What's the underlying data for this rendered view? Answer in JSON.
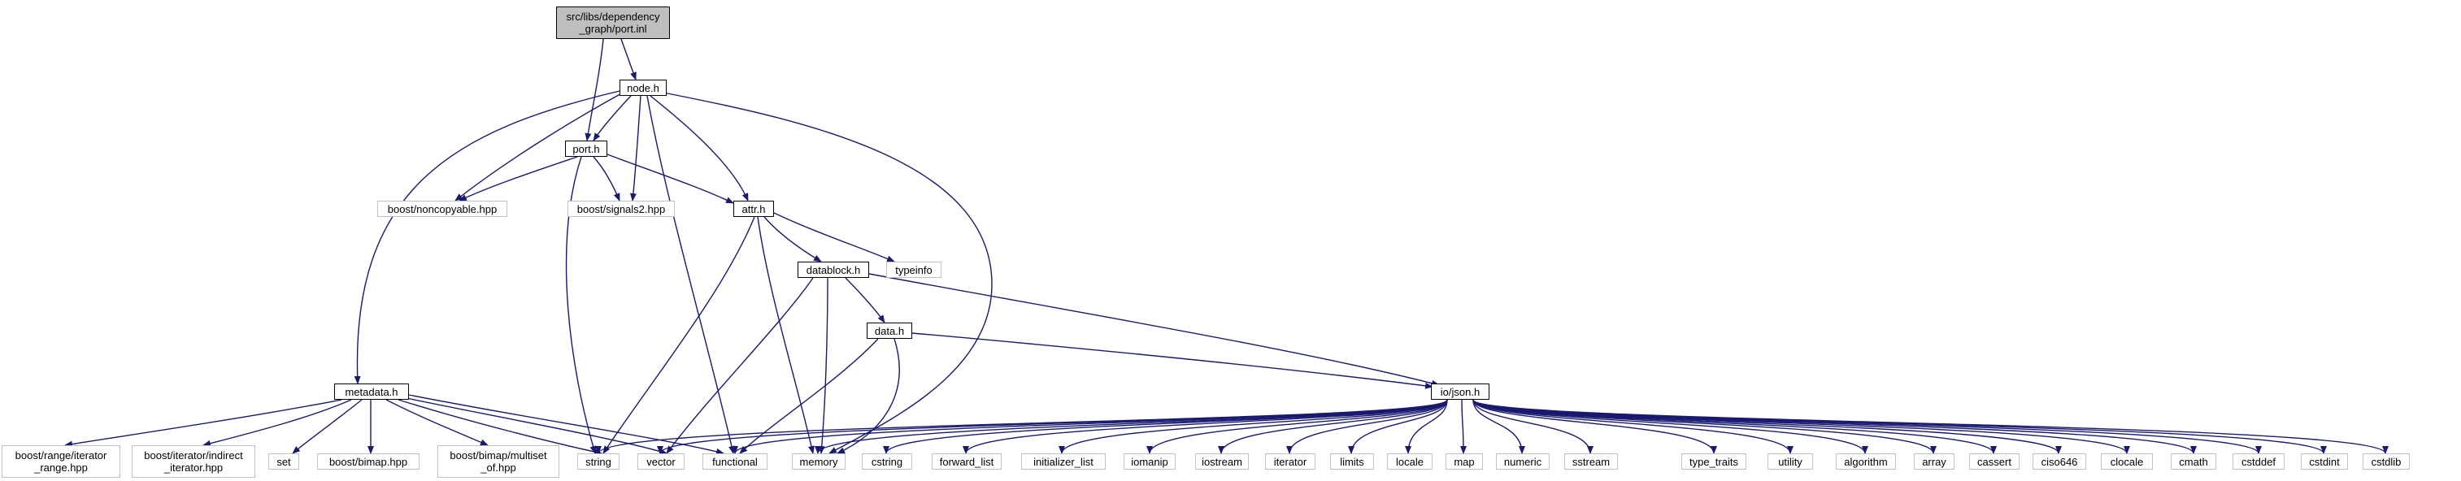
{
  "root": {
    "label_line1": "src/libs/dependency",
    "label_line2": "_graph/port.inl"
  },
  "nodes": {
    "node_h": "node.h",
    "port_h": "port.h",
    "attr_h": "attr.h",
    "datablock_h": "datablock.h",
    "data_h": "data.h",
    "metadata_h": "metadata.h",
    "io_json_h": "io/json.h",
    "boost_noncopyable": "boost/noncopyable.hpp",
    "boost_signals2": "boost/signals2.hpp",
    "typeinfo": "typeinfo",
    "boost_range_line1": "boost/range/iterator",
    "boost_range_line2": "_range.hpp",
    "boost_iter_line1": "boost/iterator/indirect",
    "boost_iter_line2": "_iterator.hpp",
    "set": "set",
    "boost_bimap": "boost/bimap.hpp",
    "boost_multiset_line1": "boost/bimap/multiset",
    "boost_multiset_line2": "_of.hpp",
    "string": "string",
    "vector": "vector",
    "functional": "functional",
    "memory": "memory",
    "cstring": "cstring",
    "forward_list": "forward_list",
    "initializer_list": "initializer_list",
    "iomanip": "iomanip",
    "iostream": "iostream",
    "iterator": "iterator",
    "limits": "limits",
    "locale": "locale",
    "map": "map",
    "numeric": "numeric",
    "sstream": "sstream",
    "type_traits": "type_traits",
    "utility": "utility",
    "algorithm": "algorithm",
    "array": "array",
    "cassert": "cassert",
    "ciso646": "ciso646",
    "clocale": "clocale",
    "cmath": "cmath",
    "cstddef": "cstddef",
    "cstdint": "cstdint",
    "cstdlib": "cstdlib"
  },
  "colors": {
    "edge": "#191970",
    "root_fill": "#bfbfbf",
    "ext_border": "#c0c0c0",
    "int_border": "#000000"
  }
}
